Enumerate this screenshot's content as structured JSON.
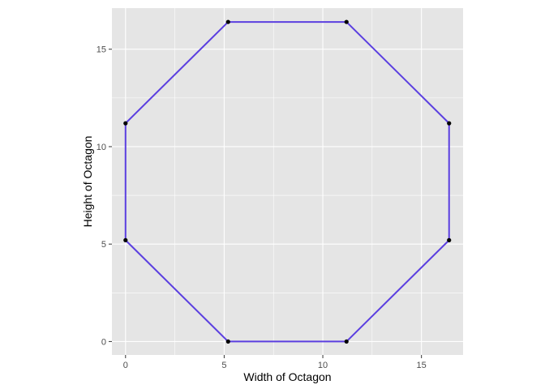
{
  "chart_data": {
    "type": "scatter",
    "title": "",
    "xlabel": "Width of Octagon",
    "ylabel": "Height of Octagon",
    "xlim": [
      -0.69,
      17.11
    ],
    "ylim": [
      -0.69,
      17.11
    ],
    "x_ticks": [
      0,
      5,
      10,
      15
    ],
    "y_ticks": [
      0,
      5,
      10,
      15
    ],
    "x_tick_labels": [
      "0",
      "5",
      "10",
      "15"
    ],
    "y_tick_labels": [
      "0",
      "5",
      "10",
      "15"
    ],
    "grid": true,
    "coord_equal": true,
    "series": [
      {
        "points": [
          {
            "x": 0,
            "y": 5.2
          },
          {
            "x": 0,
            "y": 11.2
          },
          {
            "x": 5.2,
            "y": 16.4
          },
          {
            "x": 11.2,
            "y": 16.4
          },
          {
            "x": 16.4,
            "y": 11.2
          },
          {
            "x": 16.4,
            "y": 5.2
          },
          {
            "x": 11.2,
            "y": 0
          },
          {
            "x": 5.2,
            "y": 0
          }
        ],
        "closed_path": true,
        "line_color": "#5b3fe0",
        "point_color": "#000000"
      }
    ],
    "panel_background": "#e5e5e5",
    "gridline_color": "#ffffff"
  }
}
